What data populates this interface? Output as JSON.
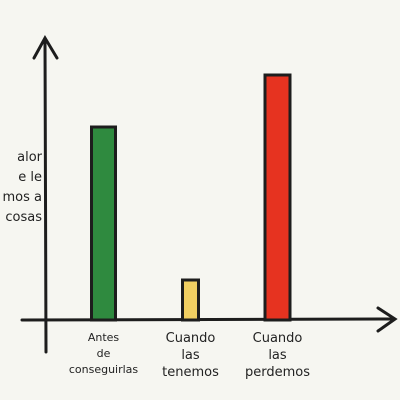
{
  "chart_data": {
    "type": "bar",
    "y_label": "alor\ne le\nmos a\ncosas",
    "categories": [
      "Antes\nde\nconseguirlas",
      "Cuando\nlas\ntenemos",
      "Cuando\nlas\nperdemos"
    ],
    "values": [
      193,
      40,
      245
    ],
    "colors": [
      "#2f8a3f",
      "#f1cf62",
      "#e63320"
    ],
    "ylim": [
      0,
      280
    ]
  }
}
